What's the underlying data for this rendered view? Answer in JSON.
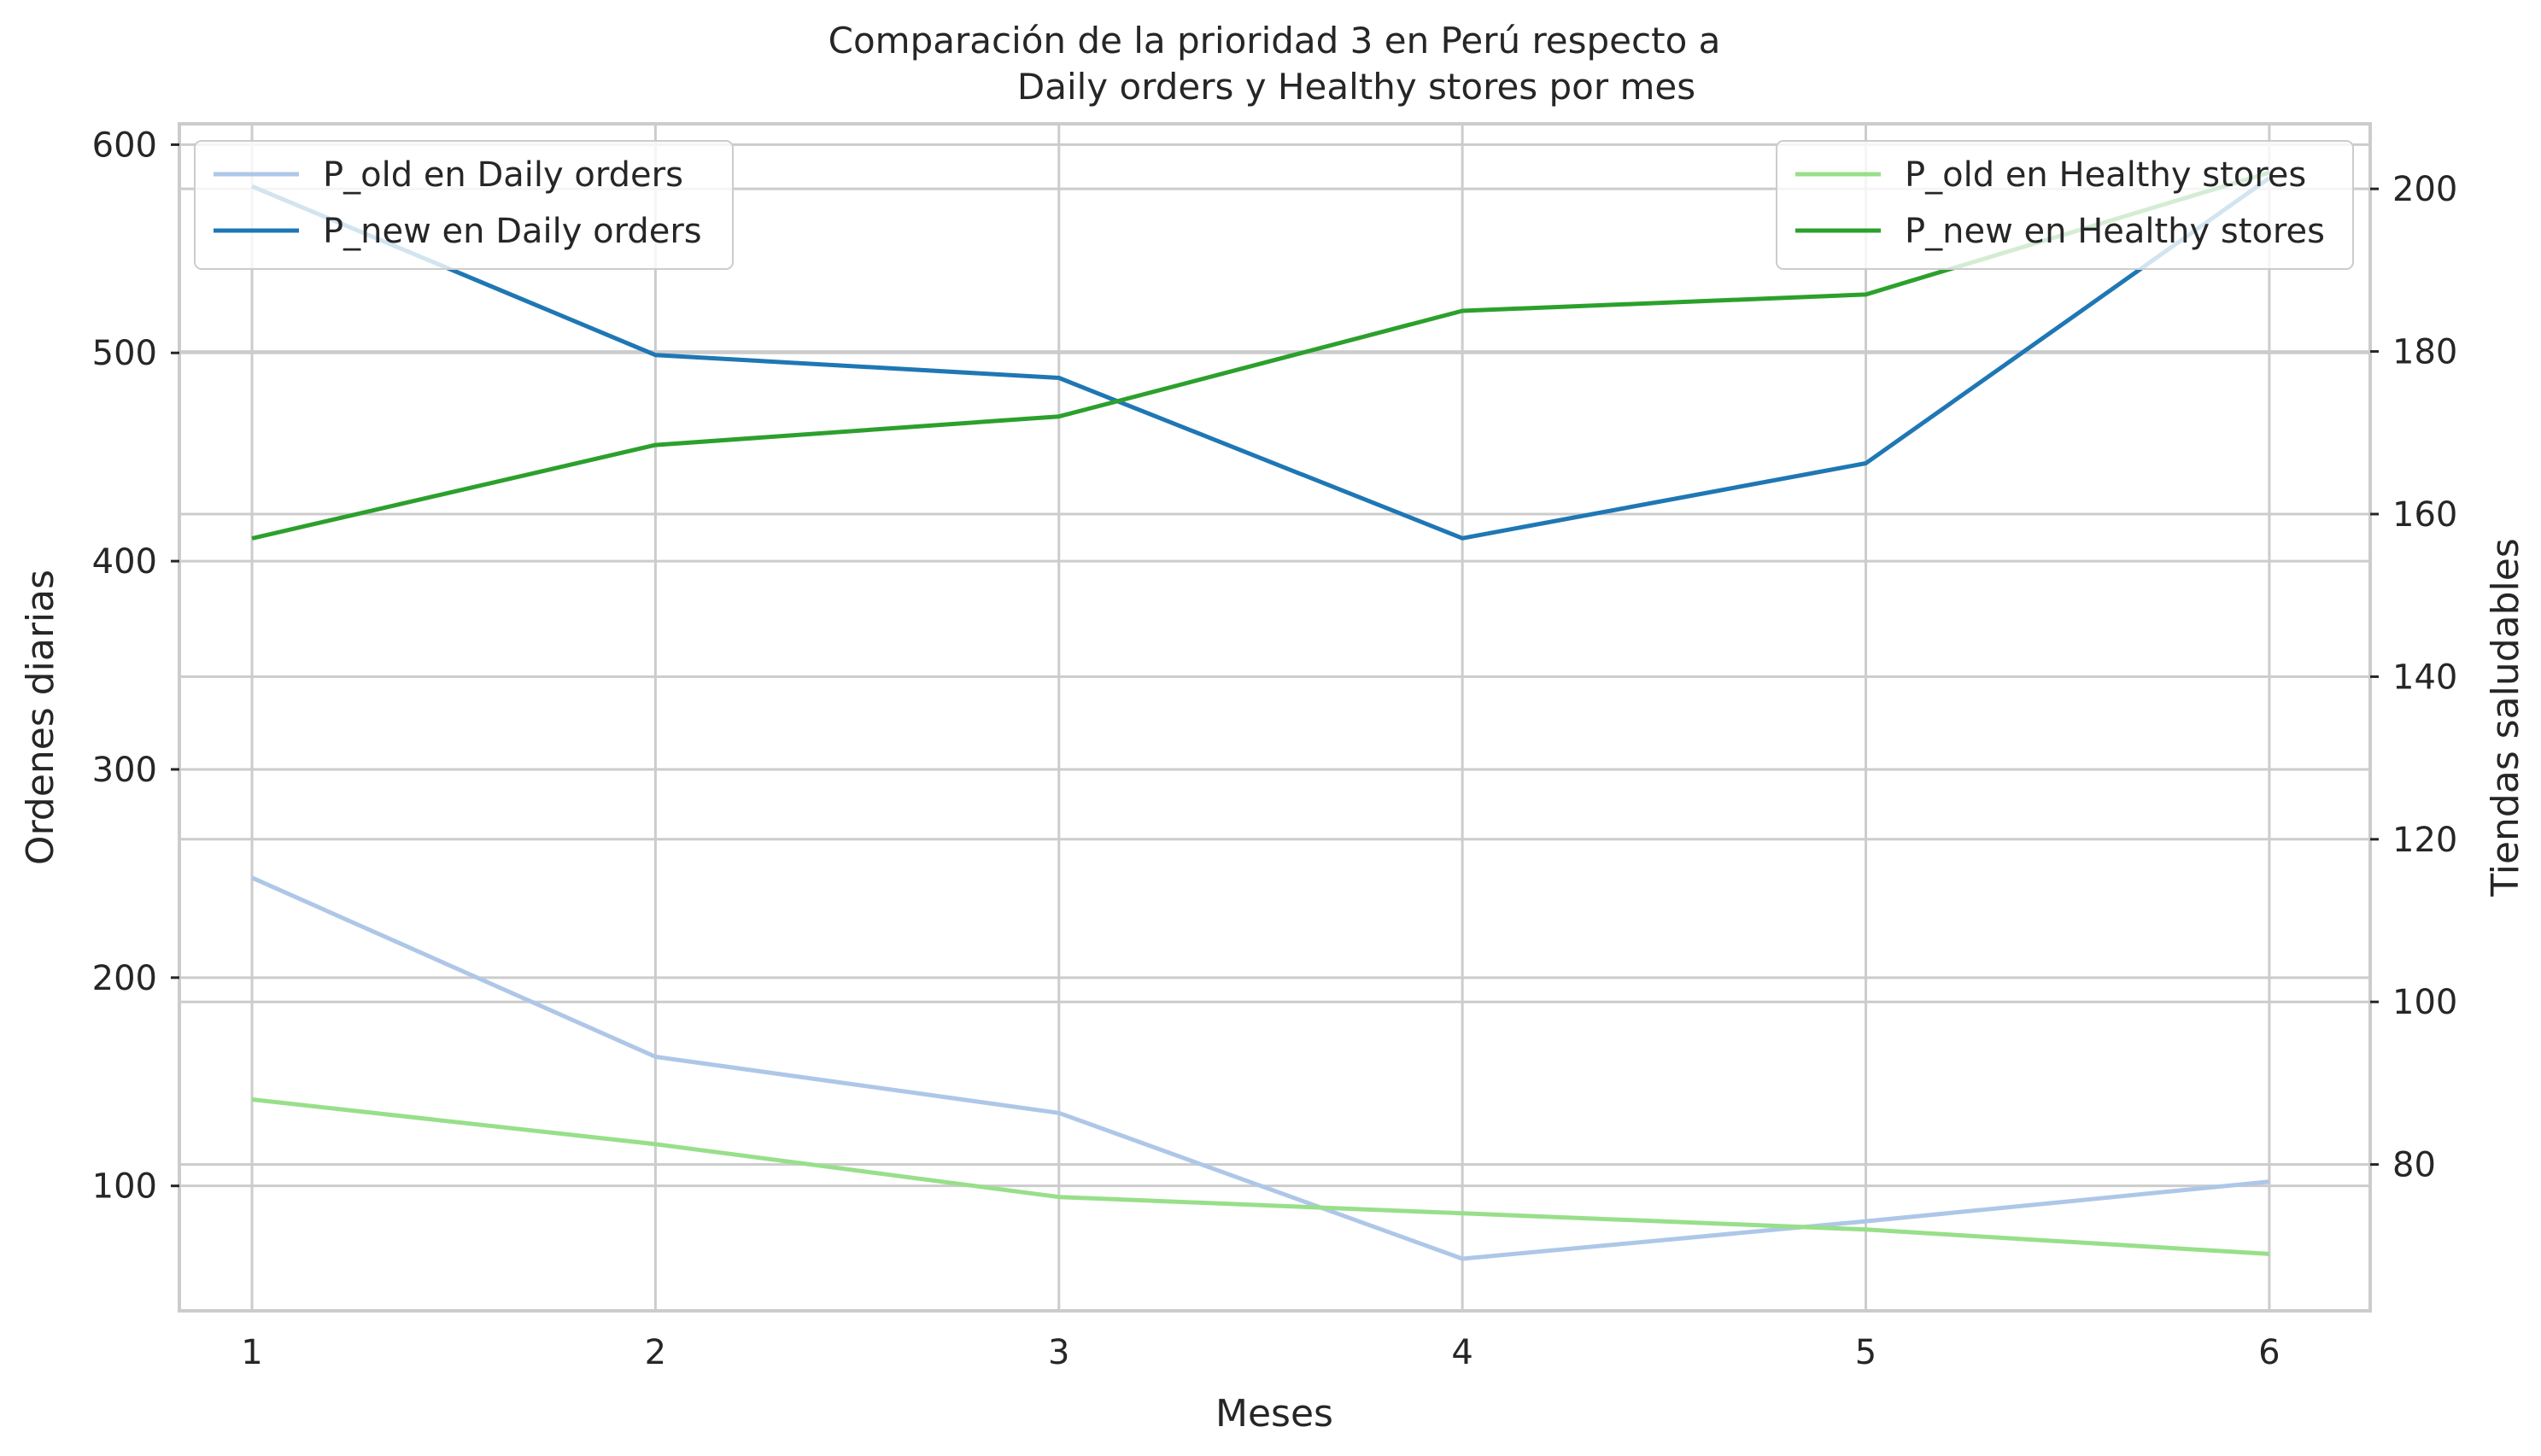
{
  "chart_data": {
    "type": "line",
    "title": "Comparación de la prioridad 3 en Perú respecto a\n           Daily orders y Healthy stores por mes",
    "title_lines": [
      "Comparación de la prioridad 3 en Perú respecto a",
      "Daily orders y Healthy stores por mes"
    ],
    "xlabel": "Meses",
    "ylabel_left": "Ordenes diarias",
    "ylabel_right": "Tiendas saludables",
    "x": [
      1,
      2,
      3,
      4,
      5,
      6
    ],
    "xlim": [
      0.82,
      6.25
    ],
    "ylim_left": [
      40,
      610
    ],
    "ylim_right": [
      62,
      208
    ],
    "xticks": [
      "1",
      "2",
      "3",
      "4",
      "5",
      "6"
    ],
    "yticks_left": [
      "100",
      "200",
      "300",
      "400",
      "500",
      "600"
    ],
    "yticks_right": [
      "80",
      "100",
      "120",
      "140",
      "160",
      "180",
      "200"
    ],
    "grid": true,
    "series": [
      {
        "name": "P_old en Daily orders",
        "axis": "left",
        "color": "#aec7e8",
        "values": [
          248,
          162,
          135,
          65,
          83,
          102
        ]
      },
      {
        "name": "P_new en Daily orders",
        "axis": "left",
        "color": "#1f77b4",
        "values": [
          580,
          499,
          488,
          411,
          447,
          584
        ]
      },
      {
        "name": "P_old en Healthy stores",
        "axis": "right",
        "color": "#98df8a",
        "values": [
          88,
          82.5,
          76,
          74,
          72,
          69
        ]
      },
      {
        "name": "P_new en Healthy stores",
        "axis": "right",
        "color": "#2ca02c",
        "values": [
          157,
          168.5,
          172,
          185,
          187,
          202
        ]
      }
    ],
    "legend_left": {
      "placement": "upper-left",
      "entries": [
        "P_old en Daily orders",
        "P_new en Daily orders"
      ]
    },
    "legend_right": {
      "placement": "upper-right",
      "entries": [
        "P_old en Healthy stores",
        "P_new en Healthy stores"
      ]
    }
  }
}
